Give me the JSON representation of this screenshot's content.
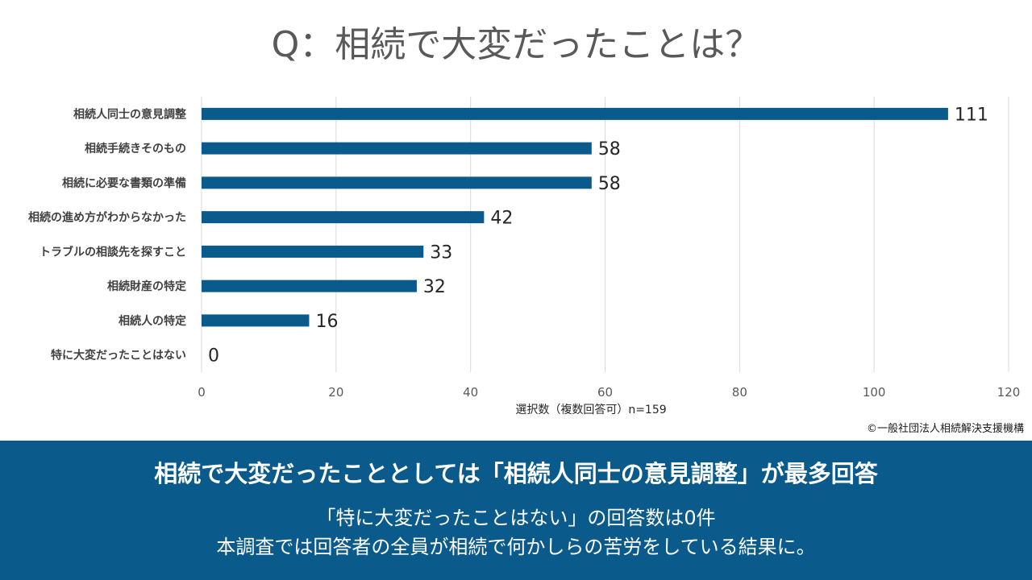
{
  "title": "Q：相続で大変だったことは？",
  "chart_data": {
    "type": "bar",
    "orientation": "horizontal",
    "categories": [
      "相続人同士の意見調整",
      "相続手続きそのもの",
      "相続に必要な書類の準備",
      "相続の進め方がわからなかった",
      "トラブルの相談先を探すこと",
      "相続財産の特定",
      "相続人の特定",
      "特に大変だったことはない"
    ],
    "values": [
      111,
      58,
      58,
      42,
      33,
      32,
      16,
      0
    ],
    "xlim": [
      0,
      120
    ],
    "xticks": [
      0,
      20,
      40,
      60,
      80,
      100,
      120
    ],
    "xlabel": "選択数（複数回答可）n=159",
    "grid": "vertical",
    "bar_color": "#0a5a8c"
  },
  "copyright": "©一般社団法人相続解決支援機構",
  "summary": {
    "headline": "相続で大変だったこととしては「相続人同士の意見調整」が最多回答",
    "line1": "「特に大変だったことはない」の回答数は0件",
    "line2": "本調査では回答者の全員が相続で何かしらの苦労をしている結果に。"
  },
  "colors": {
    "banner": "#0a5a8c",
    "title_text": "#595959",
    "grid": "#d9d9d9"
  }
}
